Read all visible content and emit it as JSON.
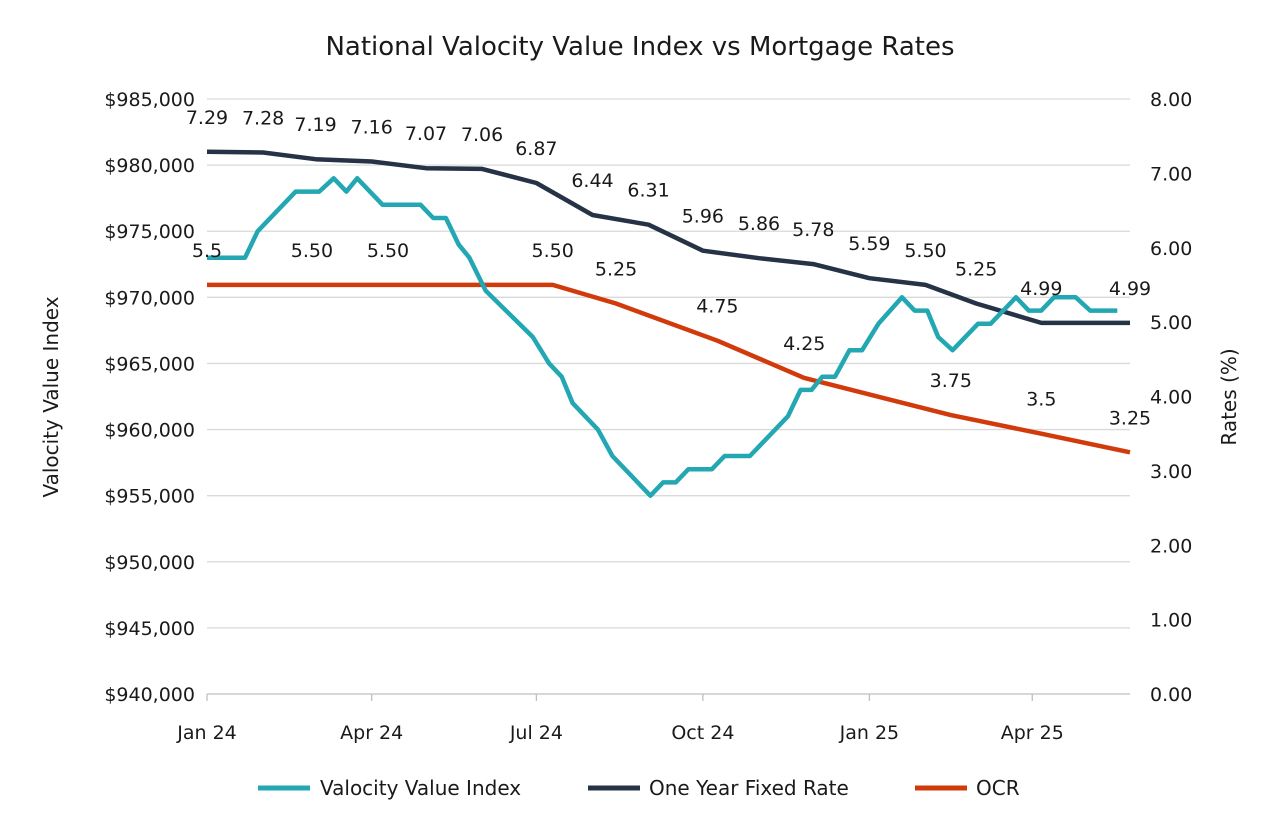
{
  "chart_data": {
    "type": "line",
    "title": "National Valocity Value Index vs Mortgage Rates",
    "ylabel_left": "Valocity Value Index",
    "ylabel_right": "Rates (%)",
    "x_ticks": [
      "Jan 24",
      "Apr 24",
      "Jul 24",
      "Oct 24",
      "Jan 25",
      "Apr 25"
    ],
    "x_tick_dates": [
      "2024-01-01",
      "2024-04-01",
      "2024-07-01",
      "2024-10-01",
      "2025-01-01",
      "2025-04-01"
    ],
    "xlim": [
      "2024-01-01",
      "2025-05-25"
    ],
    "ylim_left": [
      940000,
      985000
    ],
    "y_ticks_left": [
      "$940,000",
      "$945,000",
      "$950,000",
      "$955,000",
      "$960,000",
      "$965,000",
      "$970,000",
      "$975,000",
      "$980,000",
      "$985,000"
    ],
    "ylim_right": [
      0,
      8
    ],
    "y_ticks_right": [
      "0.00",
      "1.00",
      "2.00",
      "3.00",
      "4.00",
      "5.00",
      "6.00",
      "7.00",
      "8.00"
    ],
    "grid": true,
    "legend": "bottom",
    "series": [
      {
        "name": "Valocity Value Index",
        "axis": "left",
        "color": "#22a7b3",
        "points": [
          [
            "2024-01-01",
            973000
          ],
          [
            "2024-01-22",
            973000
          ],
          [
            "2024-01-29",
            975000
          ],
          [
            "2024-02-19",
            978000
          ],
          [
            "2024-03-03",
            978000
          ],
          [
            "2024-03-11",
            979000
          ],
          [
            "2024-03-18",
            978000
          ],
          [
            "2024-03-24",
            979000
          ],
          [
            "2024-04-07",
            977000
          ],
          [
            "2024-04-28",
            977000
          ],
          [
            "2024-05-05",
            976000
          ],
          [
            "2024-05-12",
            976000
          ],
          [
            "2024-05-19",
            974000
          ],
          [
            "2024-05-25",
            973000
          ],
          [
            "2024-06-03",
            970500
          ],
          [
            "2024-06-29",
            967000
          ],
          [
            "2024-07-08",
            965000
          ],
          [
            "2024-07-15",
            964000
          ],
          [
            "2024-07-21",
            962000
          ],
          [
            "2024-08-04",
            960000
          ],
          [
            "2024-08-12",
            958000
          ],
          [
            "2024-09-02",
            955000
          ],
          [
            "2024-09-09",
            956000
          ],
          [
            "2024-09-16",
            956000
          ],
          [
            "2024-09-23",
            957000
          ],
          [
            "2024-10-06",
            957000
          ],
          [
            "2024-10-13",
            958000
          ],
          [
            "2024-10-27",
            958000
          ],
          [
            "2024-11-17",
            961000
          ],
          [
            "2024-11-24",
            963000
          ],
          [
            "2024-11-30",
            963000
          ],
          [
            "2024-12-06",
            964000
          ],
          [
            "2024-12-13",
            964000
          ],
          [
            "2024-12-21",
            966000
          ],
          [
            "2024-12-28",
            966000
          ],
          [
            "2025-01-06",
            968000
          ],
          [
            "2025-01-19",
            970000
          ],
          [
            "2025-01-26",
            969000
          ],
          [
            "2025-02-02",
            969000
          ],
          [
            "2025-02-08",
            967000
          ],
          [
            "2025-02-16",
            966000
          ],
          [
            "2025-03-02",
            968000
          ],
          [
            "2025-03-09",
            968000
          ],
          [
            "2025-03-23",
            970000
          ],
          [
            "2025-03-30",
            969000
          ],
          [
            "2025-04-06",
            969000
          ],
          [
            "2025-04-13",
            970000
          ],
          [
            "2025-04-25",
            970000
          ],
          [
            "2025-05-03",
            969000
          ],
          [
            "2025-05-18",
            969000
          ]
        ]
      },
      {
        "name": "One Year Fixed Rate",
        "axis": "right",
        "color": "#263246",
        "points": [
          [
            "2024-01-01",
            7.29,
            "7.29"
          ],
          [
            "2024-02-01",
            7.28,
            "7.28"
          ],
          [
            "2024-03-01",
            7.19,
            "7.19"
          ],
          [
            "2024-04-01",
            7.16,
            "7.16"
          ],
          [
            "2024-05-01",
            7.07,
            "7.07"
          ],
          [
            "2024-06-01",
            7.06,
            "7.06"
          ],
          [
            "2024-07-01",
            6.87,
            "6.87"
          ],
          [
            "2024-08-01",
            6.44,
            "6.44"
          ],
          [
            "2024-09-01",
            6.31,
            "6.31"
          ],
          [
            "2024-10-01",
            5.96,
            "5.96"
          ],
          [
            "2024-11-01",
            5.86,
            "5.86"
          ],
          [
            "2024-12-01",
            5.78,
            "5.78"
          ],
          [
            "2025-01-01",
            5.59,
            "5.59"
          ],
          [
            "2025-02-01",
            5.5,
            "5.50"
          ],
          [
            "2025-03-01",
            5.25,
            "5.25"
          ],
          [
            "2025-04-06",
            4.99,
            "4.99"
          ],
          [
            "2025-05-25",
            4.99,
            "4.99"
          ]
        ]
      },
      {
        "name": "OCR",
        "axis": "right",
        "color": "#d13b0b",
        "points": [
          [
            "2024-01-01",
            5.5,
            "5.5"
          ],
          [
            "2024-02-28",
            5.5,
            "5.50"
          ],
          [
            "2024-04-10",
            5.5,
            "5.50"
          ],
          [
            "2024-07-10",
            5.5,
            "5.50"
          ],
          [
            "2024-08-14",
            5.25,
            "5.25"
          ],
          [
            "2024-10-09",
            4.75,
            "4.75"
          ],
          [
            "2024-11-26",
            4.25,
            "4.25"
          ],
          [
            "2025-02-15",
            3.75,
            "3.75"
          ],
          [
            "2025-04-06",
            3.5,
            "3.5"
          ],
          [
            "2025-05-25",
            3.25,
            "3.25"
          ]
        ]
      }
    ]
  }
}
